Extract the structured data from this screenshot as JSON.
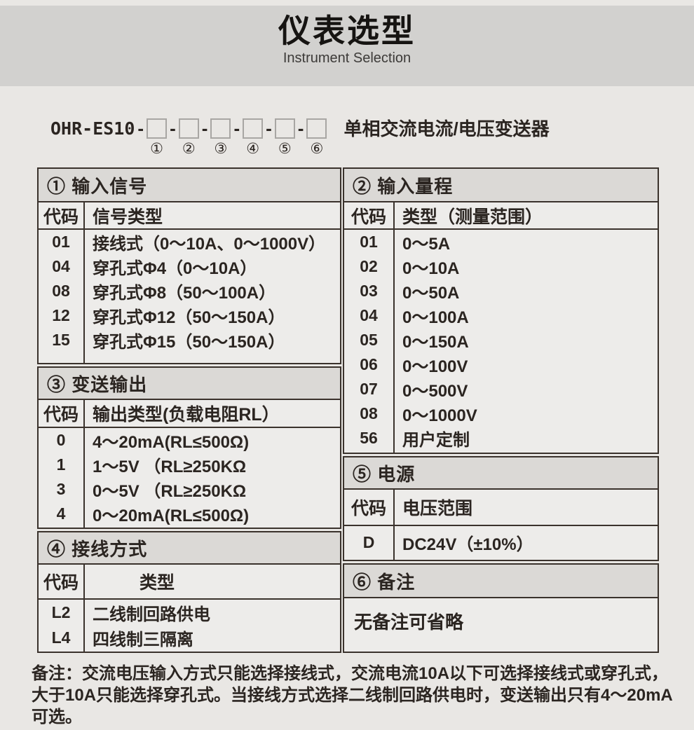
{
  "banner": {
    "title": "仪表选型",
    "subtitle": "Instrument Selection"
  },
  "model": {
    "prefix": "OHR-ES10",
    "separator": "-",
    "positions": [
      "①",
      "②",
      "③",
      "④",
      "⑤",
      "⑥"
    ],
    "product_label": "单相交流电流/电压变送器"
  },
  "tables": {
    "input_signal": {
      "header": "① 输入信号",
      "col_code": "代码",
      "col_type": "信号类型",
      "rows": [
        {
          "code": "01",
          "type": "接线式（0～10A、0～1000V）"
        },
        {
          "code": "04",
          "type": "穿孔式Φ4（0～10A）"
        },
        {
          "code": "08",
          "type": "穿孔式Φ8（50～100A）"
        },
        {
          "code": "12",
          "type": "穿孔式Φ12（50～150A）"
        },
        {
          "code": "15",
          "type": "穿孔式Φ15（50～150A）"
        }
      ]
    },
    "input_range": {
      "header": "② 输入量程",
      "col_code": "代码",
      "col_type": "类型（测量范围）",
      "rows": [
        {
          "code": "01",
          "type": "0～5A"
        },
        {
          "code": "02",
          "type": "0～10A"
        },
        {
          "code": "03",
          "type": "0～50A"
        },
        {
          "code": "04",
          "type": "0～100A"
        },
        {
          "code": "05",
          "type": "0～150A"
        },
        {
          "code": "06",
          "type": "0～100V"
        },
        {
          "code": "07",
          "type": "0～500V"
        },
        {
          "code": "08",
          "type": "0～1000V"
        },
        {
          "code": "56",
          "type": "用户定制"
        }
      ]
    },
    "output": {
      "header": "③ 变送输出",
      "col_code": "代码",
      "col_type": "输出类型(负载电阻RL）",
      "rows": [
        {
          "code": "0",
          "type": "4～20mA(RL≤500Ω)"
        },
        {
          "code": "1",
          "type": "1～5V （RL≥250KΩ"
        },
        {
          "code": "3",
          "type": "0～5V （RL≥250KΩ"
        },
        {
          "code": "4",
          "type": "0～20mA(RL≤500Ω)"
        }
      ]
    },
    "wiring": {
      "header": "④ 接线方式",
      "col_code": "代码",
      "col_type": "类型",
      "rows": [
        {
          "code": "L2",
          "type": "二线制回路供电"
        },
        {
          "code": "L4",
          "type": "四线制三隔离"
        }
      ]
    },
    "power": {
      "header": "⑤ 电源",
      "col_code": "代码",
      "col_type": "电压范围",
      "rows": [
        {
          "code": "D",
          "type": "DC24V（±10%）"
        }
      ]
    },
    "remark": {
      "header": "⑥ 备注",
      "note": "无备注可省略"
    }
  },
  "footnote": {
    "lines": [
      "备注：交流电压输入方式只能选择接线式，交流电流10A以下可选择接线式或穿孔式，",
      "大于10A只能选择穿孔式。当接线方式选择二线制回路供电时，变送输出只有4～20mA",
      "可选。"
    ]
  },
  "colors": {
    "page_bg": "#e9e7e4",
    "banner_bg": "#d2d1cf",
    "section_header_bg": "#dbd9d6",
    "cell_bg": "#edecea",
    "border": "#3a322c",
    "text": "#2b2521",
    "box_border": "#a8a6a3"
  }
}
